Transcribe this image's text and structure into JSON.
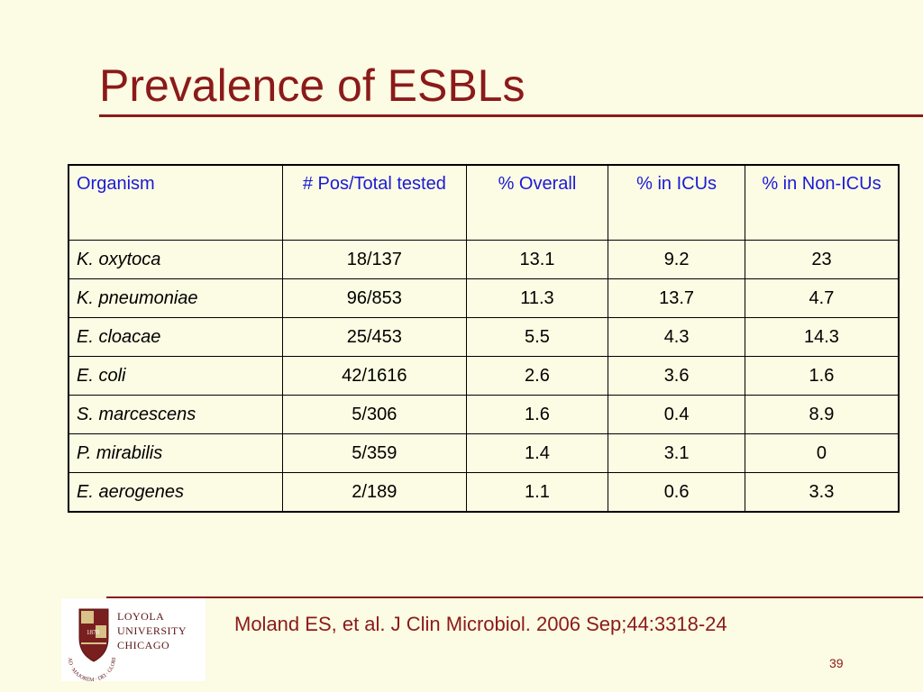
{
  "slide": {
    "title": "Prevalence of ESBLs",
    "citation": "Moland ES, et al. J Clin Microbiol. 2006 Sep;44:3318-24",
    "page_number": "39"
  },
  "table": {
    "headers": [
      "Organism",
      "# Pos/Total tested",
      "% Overall",
      "% in ICUs",
      "% in  Non-ICUs"
    ],
    "rows": [
      [
        "K. oxytoca",
        "18/137",
        "13.1",
        "9.2",
        "23"
      ],
      [
        "K. pneumoniae",
        "96/853",
        "11.3",
        "13.7",
        "4.7"
      ],
      [
        "E. cloacae",
        "25/453",
        "5.5",
        "4.3",
        "14.3"
      ],
      [
        "E. coli",
        "42/1616",
        "2.6",
        "3.6",
        "1.6"
      ],
      [
        "S. marcescens",
        "5/306",
        "1.6",
        "0.4",
        "8.9"
      ],
      [
        "P. mirabilis",
        "5/359",
        "1.4",
        "3.1",
        "0"
      ],
      [
        "E. aerogenes",
        "2/189",
        "1.1",
        "0.6",
        "3.3"
      ]
    ]
  },
  "logo": {
    "lines": [
      "LOYOLA",
      "UNIVERSITY",
      "CHICAGO"
    ],
    "seal_year": "1870",
    "motto": "AD · MAJOREM · DEI · GLORIAM"
  },
  "colors": {
    "accent": "#8b1a1a",
    "header_text": "#1a1ad6",
    "background": "#fcfbe3"
  }
}
